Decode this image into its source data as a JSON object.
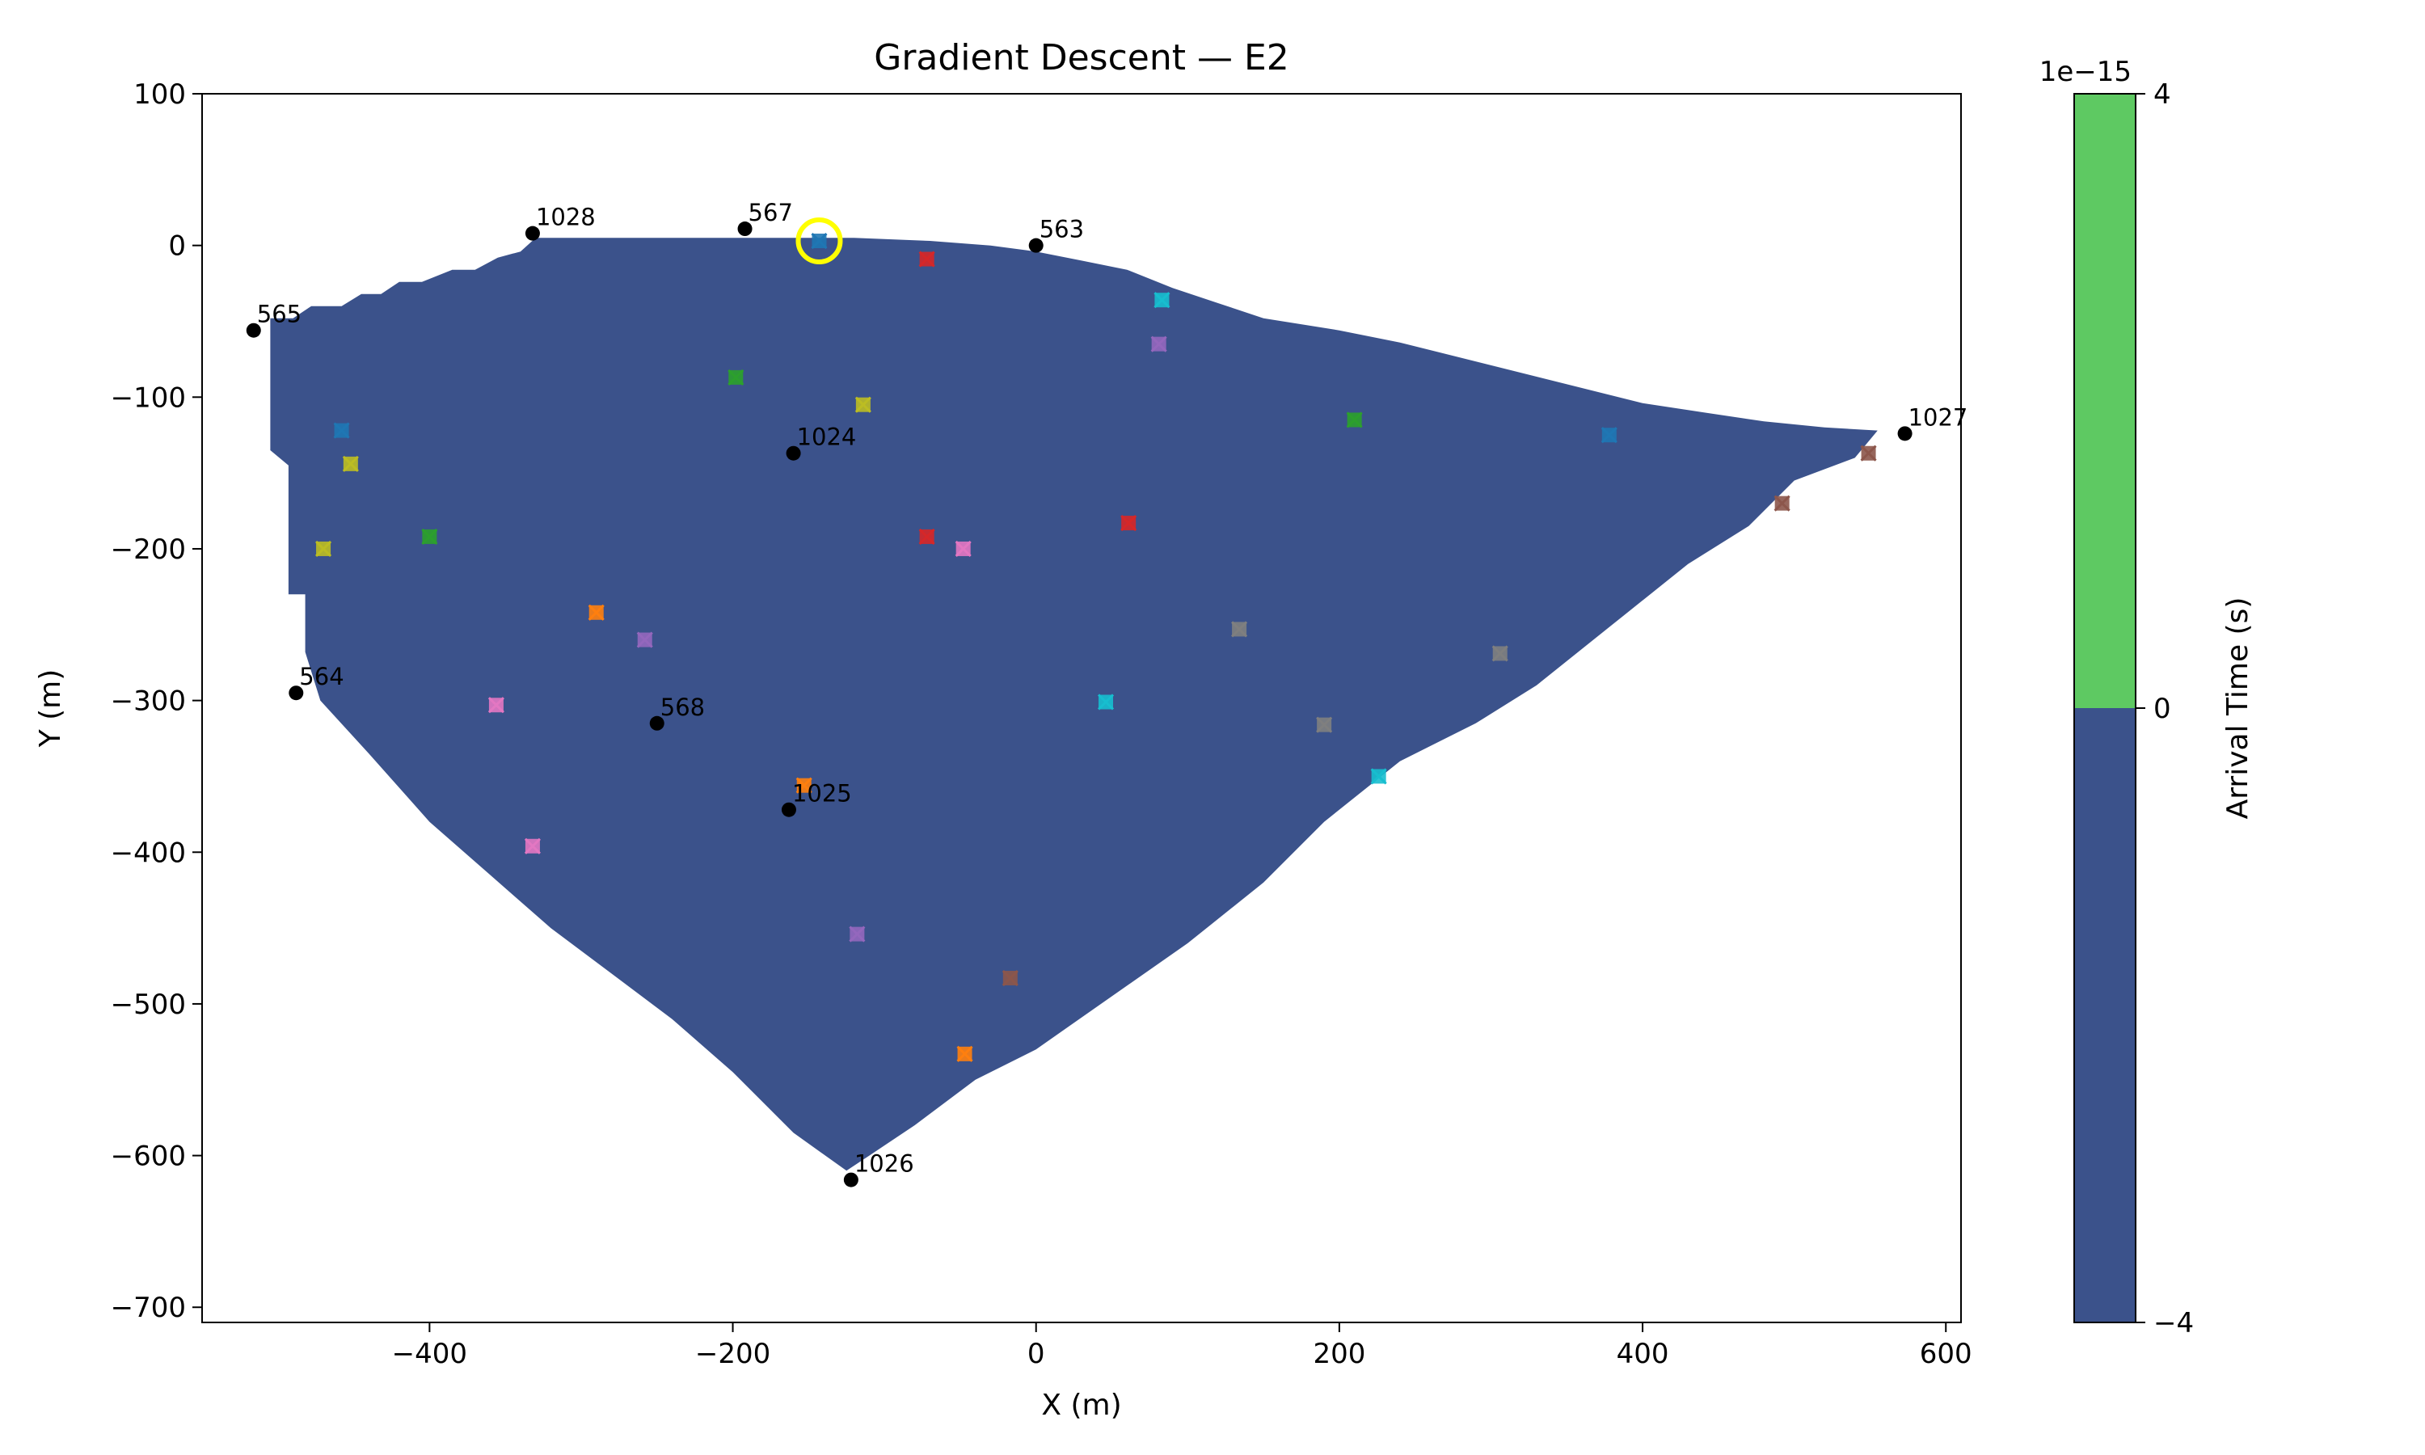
{
  "chart_data": {
    "type": "scatter",
    "title": "Gradient Descent — E2",
    "xlabel": "X (m)",
    "ylabel": "Y (m)",
    "xlim": [
      -550,
      610
    ],
    "ylim": [
      -710,
      100
    ],
    "x_ticks": [
      -400,
      -200,
      0,
      200,
      400,
      600
    ],
    "y_ticks": [
      100,
      0,
      -100,
      -200,
      -300,
      -400,
      -500,
      -600,
      -700
    ],
    "grid": false,
    "region_color": "#3b528b",
    "region_polygon": [
      [
        -505,
        -48
      ],
      [
        -490,
        -48
      ],
      [
        -478,
        -40
      ],
      [
        -458,
        -40
      ],
      [
        -445,
        -32
      ],
      [
        -432,
        -32
      ],
      [
        -420,
        -24
      ],
      [
        -405,
        -24
      ],
      [
        -385,
        -16
      ],
      [
        -370,
        -16
      ],
      [
        -355,
        -8
      ],
      [
        -340,
        -4
      ],
      [
        -330,
        5
      ],
      [
        -280,
        5
      ],
      [
        -120,
        5
      ],
      [
        -70,
        3
      ],
      [
        -30,
        0
      ],
      [
        0,
        -4
      ],
      [
        30,
        -10
      ],
      [
        60,
        -16
      ],
      [
        90,
        -28
      ],
      [
        120,
        -38
      ],
      [
        150,
        -48
      ],
      [
        200,
        -56
      ],
      [
        240,
        -64
      ],
      [
        280,
        -74
      ],
      [
        320,
        -84
      ],
      [
        360,
        -94
      ],
      [
        400,
        -104
      ],
      [
        440,
        -110
      ],
      [
        480,
        -116
      ],
      [
        520,
        -120
      ],
      [
        555,
        -122
      ],
      [
        540,
        -140
      ],
      [
        500,
        -155
      ],
      [
        470,
        -185
      ],
      [
        430,
        -210
      ],
      [
        380,
        -250
      ],
      [
        330,
        -290
      ],
      [
        290,
        -315
      ],
      [
        240,
        -340
      ],
      [
        190,
        -380
      ],
      [
        150,
        -420
      ],
      [
        100,
        -460
      ],
      [
        50,
        -495
      ],
      [
        0,
        -530
      ],
      [
        -40,
        -550
      ],
      [
        -80,
        -580
      ],
      [
        -110,
        -600
      ],
      [
        -125,
        -610
      ],
      [
        -160,
        -585
      ],
      [
        -200,
        -545
      ],
      [
        -240,
        -510
      ],
      [
        -280,
        -480
      ],
      [
        -320,
        -450
      ],
      [
        -360,
        -415
      ],
      [
        -400,
        -380
      ],
      [
        -440,
        -335
      ],
      [
        -472,
        -300
      ],
      [
        -482,
        -268
      ],
      [
        -482,
        -230
      ],
      [
        -493,
        -230
      ],
      [
        -493,
        -145
      ],
      [
        -505,
        -135
      ]
    ],
    "stations": [
      {
        "label": "1028",
        "x": -332,
        "y": 8
      },
      {
        "label": "567",
        "x": -192,
        "y": 11
      },
      {
        "label": "563",
        "x": 0,
        "y": 0
      },
      {
        "label": "565",
        "x": -516,
        "y": -56
      },
      {
        "label": "1024",
        "x": -160,
        "y": -137
      },
      {
        "label": "1027",
        "x": 573,
        "y": -124
      },
      {
        "label": "564",
        "x": -488,
        "y": -295
      },
      {
        "label": "568",
        "x": -250,
        "y": -315
      },
      {
        "label": "1025",
        "x": -163,
        "y": -372
      },
      {
        "label": "1026",
        "x": -122,
        "y": -616
      }
    ],
    "trial_points": [
      {
        "x": -143,
        "y": 3,
        "color": "#1f77b4"
      },
      {
        "x": -72,
        "y": -9,
        "color": "#d62728"
      },
      {
        "x": 83,
        "y": -36,
        "color": "#17becf"
      },
      {
        "x": 81,
        "y": -65,
        "color": "#9467bd"
      },
      {
        "x": -198,
        "y": -87,
        "color": "#2ca02c"
      },
      {
        "x": -114,
        "y": -105,
        "color": "#bcbd22"
      },
      {
        "x": 210,
        "y": -115,
        "color": "#2ca02c"
      },
      {
        "x": 378,
        "y": -125,
        "color": "#1f77b4"
      },
      {
        "x": -458,
        "y": -122,
        "color": "#1f77b4"
      },
      {
        "x": -452,
        "y": -144,
        "color": "#bcbd22"
      },
      {
        "x": 549,
        "y": -137,
        "color": "#8c564b"
      },
      {
        "x": 492,
        "y": -170,
        "color": "#8c564b"
      },
      {
        "x": 61,
        "y": -183,
        "color": "#d62728"
      },
      {
        "x": -72,
        "y": -192,
        "color": "#d62728"
      },
      {
        "x": -48,
        "y": -200,
        "color": "#e377c2"
      },
      {
        "x": -400,
        "y": -192,
        "color": "#2ca02c"
      },
      {
        "x": -470,
        "y": -200,
        "color": "#bcbd22"
      },
      {
        "x": -290,
        "y": -242,
        "color": "#ff7f0e"
      },
      {
        "x": -258,
        "y": -260,
        "color": "#9467bd"
      },
      {
        "x": 134,
        "y": -253,
        "color": "#7f7f7f"
      },
      {
        "x": 306,
        "y": -269,
        "color": "#7f7f7f"
      },
      {
        "x": 46,
        "y": -301,
        "color": "#17becf"
      },
      {
        "x": -356,
        "y": -303,
        "color": "#e377c2"
      },
      {
        "x": 190,
        "y": -316,
        "color": "#7f7f7f"
      },
      {
        "x": 226,
        "y": -350,
        "color": "#17becf"
      },
      {
        "x": -153,
        "y": -356,
        "color": "#ff7f0e"
      },
      {
        "x": -332,
        "y": -396,
        "color": "#e377c2"
      },
      {
        "x": -118,
        "y": -454,
        "color": "#9467bd"
      },
      {
        "x": -17,
        "y": -483,
        "color": "#8c564b"
      },
      {
        "x": -47,
        "y": -533,
        "color": "#ff7f0e"
      }
    ],
    "highlight": {
      "x": -143,
      "y": 3,
      "color": "#ffff00"
    },
    "colorbar": {
      "label": "Arrival Time (s)",
      "multiplier": "1e−15",
      "range": [
        -4,
        4
      ],
      "ticks": [
        "4",
        "0",
        "−4"
      ],
      "segments": [
        {
          "from": 0,
          "to": 4,
          "color": "#5ec962"
        },
        {
          "from": -4,
          "to": 0,
          "color": "#3b528b"
        }
      ]
    }
  }
}
